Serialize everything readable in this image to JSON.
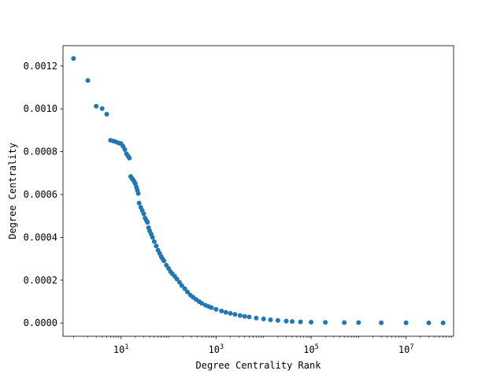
{
  "chart_data": {
    "type": "scatter",
    "title": "",
    "xlabel": "Degree Centrality Rank",
    "ylabel": "Degree Centrality",
    "xscale": "log",
    "xlim": [
      0.6,
      100000000
    ],
    "ylim": [
      -6.19e-05,
      0.0012948
    ],
    "grid": false,
    "marker_color": "#1f77b4",
    "x_ticks": [
      {
        "value": 10,
        "base": "10",
        "exp": "1"
      },
      {
        "value": 1000,
        "base": "10",
        "exp": "3"
      },
      {
        "value": 100000,
        "base": "10",
        "exp": "5"
      },
      {
        "value": 10000000,
        "base": "10",
        "exp": "7"
      }
    ],
    "y_ticks": [
      {
        "value": 0.0,
        "label": "0.0000"
      },
      {
        "value": 0.0002,
        "label": "0.0002"
      },
      {
        "value": 0.0004,
        "label": "0.0004"
      },
      {
        "value": 0.0006,
        "label": "0.0006"
      },
      {
        "value": 0.0008,
        "label": "0.0008"
      },
      {
        "value": 0.001,
        "label": "0.0010"
      },
      {
        "value": 0.0012,
        "label": "0.0012"
      }
    ],
    "series": [
      {
        "points": [
          [
            1,
            0.001235
          ],
          [
            2,
            0.001132
          ],
          [
            3,
            0.001012
          ],
          [
            4,
            0.001001
          ],
          [
            5,
            0.000975
          ],
          [
            6,
            0.000853
          ],
          [
            7,
            0.000849
          ],
          [
            8,
            0.000845
          ],
          [
            9,
            0.00084
          ],
          [
            10,
            0.000838
          ],
          [
            11,
            0.000825
          ],
          [
            12,
            0.00081
          ],
          [
            13,
            0.00079
          ],
          [
            14,
            0.00078
          ],
          [
            15,
            0.00077
          ],
          [
            16,
            0.000684
          ],
          [
            17,
            0.000675
          ],
          [
            18,
            0.000668
          ],
          [
            19,
            0.00066
          ],
          [
            20,
            0.00065
          ],
          [
            21,
            0.000635
          ],
          [
            22,
            0.00062
          ],
          [
            23,
            0.000605
          ],
          [
            24,
            0.00056
          ],
          [
            26,
            0.00054
          ],
          [
            28,
            0.000525
          ],
          [
            30,
            0.00051
          ],
          [
            32,
            0.00049
          ],
          [
            34,
            0.00048
          ],
          [
            36,
            0.00047
          ],
          [
            38,
            0.000445
          ],
          [
            40,
            0.00043
          ],
          [
            43,
            0.000415
          ],
          [
            46,
            0.0004
          ],
          [
            50,
            0.00038
          ],
          [
            55,
            0.00036
          ],
          [
            60,
            0.00034
          ],
          [
            65,
            0.000325
          ],
          [
            70,
            0.00031
          ],
          [
            75,
            0.0003
          ],
          [
            80,
            0.00029
          ],
          [
            90,
            0.00027
          ],
          [
            100,
            0.000255
          ],
          [
            110,
            0.00024
          ],
          [
            120,
            0.00023
          ],
          [
            135,
            0.000218
          ],
          [
            150,
            0.000205
          ],
          [
            170,
            0.00019
          ],
          [
            190,
            0.000175
          ],
          [
            220,
            0.00016
          ],
          [
            250,
            0.000145
          ],
          [
            290,
            0.00013
          ],
          [
            330,
            0.00012
          ],
          [
            380,
            0.00011
          ],
          [
            440,
            0.0001
          ],
          [
            500,
            9.2e-05
          ],
          [
            600,
            8.3e-05
          ],
          [
            700,
            7.7e-05
          ],
          [
            800,
            7.2e-05
          ],
          [
            1000,
            6.4e-05
          ],
          [
            1300,
            5.6e-05
          ],
          [
            1600,
            5e-05
          ],
          [
            2000,
            4.5e-05
          ],
          [
            2500,
            4e-05
          ],
          [
            3200,
            3.5e-05
          ],
          [
            4000,
            3.1e-05
          ],
          [
            5000,
            2.8e-05
          ],
          [
            7000,
            2.3e-05
          ],
          [
            10000,
            1.9e-05
          ],
          [
            14000,
            1.5e-05
          ],
          [
            20000,
            1.2e-05
          ],
          [
            30000,
            9e-06
          ],
          [
            40000,
            7e-06
          ],
          [
            60000,
            5e-06
          ],
          [
            100000,
            4e-06
          ],
          [
            200000,
            3e-06
          ],
          [
            500000,
            2e-06
          ],
          [
            1000000,
            2e-06
          ],
          [
            3000000,
            1e-06
          ],
          [
            10000000,
            1e-06
          ],
          [
            30000000,
            5e-07
          ],
          [
            60000000,
            5e-07
          ]
        ]
      }
    ]
  }
}
